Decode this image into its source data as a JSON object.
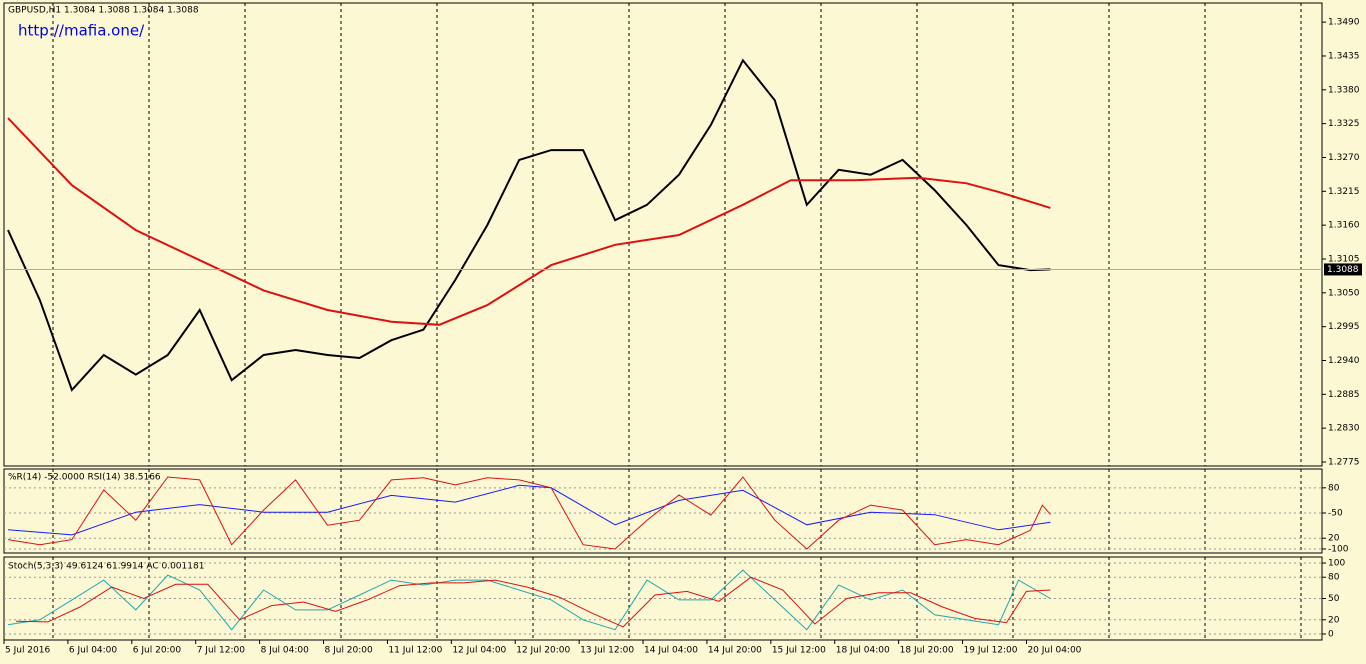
{
  "chart_data": [
    {
      "type": "line",
      "title": "GBPUSD,H1  1.3084 1.3088 1.3084 1.3088",
      "annotation": "http://mafia.one/",
      "xlim": [
        0,
        330
      ],
      "ylim": [
        1.27685,
        1.35211
      ],
      "yticks": [
        {
          "value": 1.349,
          "label": "1.3490"
        },
        1.3435,
        {
          "value": 1.338,
          "label": "1.3380"
        },
        1.3325,
        {
          "value": 1.327,
          "label": "1.3270"
        },
        1.3215,
        {
          "value": 1.316,
          "label": "1.3160"
        },
        1.3105,
        {
          "value": 1.305,
          "label": "1.3050"
        },
        1.2995,
        {
          "value": 1.294,
          "label": "1.2940"
        },
        1.2885,
        {
          "value": 1.283,
          "label": "1.2830"
        },
        1.2775
      ],
      "last": 1.3088,
      "series": [
        {
          "color": "#000000",
          "x": [
            1,
            9,
            17,
            25,
            33,
            41,
            49,
            57,
            65,
            73,
            81,
            89,
            97,
            105,
            113,
            121,
            129,
            137,
            145,
            153,
            161,
            169,
            177,
            185,
            193,
            201,
            209,
            217,
            225,
            233,
            241,
            249,
            257,
            262
          ],
          "values": [
            1.3152,
            1.3038,
            1.2892,
            1.2949,
            1.2917,
            1.2949,
            1.3022,
            1.2908,
            1.2949,
            1.2957,
            1.2949,
            1.2944,
            1.2973,
            1.299,
            1.3071,
            1.316,
            1.3266,
            1.3282,
            1.3282,
            1.3168,
            1.3193,
            1.3242,
            1.3323,
            1.3428,
            1.3363,
            1.3193,
            1.325,
            1.3242,
            1.3266,
            1.3217,
            1.316,
            1.3095,
            1.3087,
            1.3088
          ]
        },
        {
          "color": "#dd1111",
          "x": [
            1,
            17,
            33,
            49,
            65,
            81,
            97,
            109,
            121,
            137,
            153,
            169,
            185,
            197,
            213,
            229,
            241,
            249,
            262
          ],
          "values": [
            1.3334,
            1.3225,
            1.3152,
            1.3103,
            1.3054,
            1.3022,
            1.3003,
            1.2998,
            1.303,
            1.3095,
            1.3128,
            1.3144,
            1.3193,
            1.3233,
            1.3233,
            1.3237,
            1.3228,
            1.3214,
            1.3188
          ]
        }
      ]
    },
    {
      "type": "line",
      "title": "%R(14) -52.0000  RSI(14) 38.5166",
      "xlim": [
        0,
        330
      ],
      "ylim": [
        2.4,
        102.4
      ],
      "y2lim": [
        -105.6,
        11.1
      ],
      "yticks": [
        80,
        20
      ],
      "y2ticks": [
        -50,
        -100
      ],
      "series": [
        {
          "color": "#1a1aff",
          "x": [
            1,
            17,
            33,
            49,
            65,
            81,
            97,
            113,
            129,
            137,
            153,
            169,
            185,
            201,
            217,
            233,
            249,
            262
          ],
          "values": [
            30,
            24,
            51,
            60,
            51,
            51,
            71,
            63,
            83,
            80,
            36,
            65,
            77,
            36,
            51,
            48,
            30,
            39
          ]
        },
        {
          "color": "#dd1111",
          "axis": "y2",
          "x": [
            1,
            9,
            17,
            25,
            33,
            41,
            49,
            57,
            65,
            73,
            81,
            89,
            97,
            105,
            113,
            121,
            129,
            137,
            145,
            153,
            161,
            169,
            177,
            185,
            193,
            201,
            209,
            217,
            225,
            233,
            241,
            249,
            257,
            260,
            262
          ],
          "values": [
            -87,
            -94,
            -87,
            -18,
            -60,
            0,
            -4,
            -94,
            -46,
            -4,
            -67,
            -60,
            -4,
            -1,
            -11,
            -1,
            -4,
            -15,
            -94,
            -100,
            -60,
            -25,
            -53,
            0,
            -60,
            -100,
            -60,
            -39,
            -46,
            -94,
            -87,
            -94,
            -74,
            -39,
            -52
          ]
        }
      ]
    },
    {
      "type": "line",
      "title": "Stoch(5,3,3) 49.6124 61.9914  AC 0.001181",
      "xlim": [
        0,
        330
      ],
      "ylim": [
        -8.5,
        108.5
      ],
      "yticks": [
        100,
        80,
        50,
        20,
        0
      ],
      "xticks": [
        {
          "value": 0,
          "label": "5 Jul 2016"
        },
        {
          "value": 16,
          "label": "6 Jul 04:00"
        },
        {
          "value": 32,
          "label": "6 Jul 20:00"
        },
        {
          "value": 48,
          "label": "7 Jul 12:00"
        },
        {
          "value": 64,
          "label": "8 Jul 04:00"
        },
        {
          "value": 80,
          "label": "8 Jul 20:00"
        },
        {
          "value": 96,
          "label": "11 Jul 12:00"
        },
        {
          "value": 112,
          "label": "12 Jul 04:00"
        },
        {
          "value": 128,
          "label": "12 Jul 20:00"
        },
        {
          "value": 144,
          "label": "13 Jul 12:00"
        },
        {
          "value": 160,
          "label": "14 Jul 04:00"
        },
        {
          "value": 176,
          "label": "14 Jul 20:00"
        },
        {
          "value": 192,
          "label": "15 Jul 12:00"
        },
        {
          "value": 208,
          "label": "18 Jul 04:00"
        },
        {
          "value": 224,
          "label": "18 Jul 20:00"
        },
        {
          "value": 240,
          "label": "19 Jul 12:00"
        },
        {
          "value": 256,
          "label": "20 Jul 04:00"
        }
      ],
      "series": [
        {
          "color": "#20a8b0",
          "x": [
            1,
            9,
            17,
            25,
            33,
            41,
            49,
            57,
            65,
            73,
            81,
            89,
            97,
            105,
            113,
            121,
            129,
            137,
            145,
            153,
            161,
            169,
            177,
            185,
            193,
            201,
            209,
            217,
            225,
            233,
            241,
            249,
            254,
            262
          ],
          "values": [
            13,
            20,
            48,
            76,
            34,
            83,
            62,
            6,
            62,
            34,
            34,
            55,
            76,
            69,
            76,
            76,
            62,
            48,
            20,
            6,
            76,
            48,
            48,
            90,
            48,
            6,
            69,
            48,
            62,
            27,
            20,
            13,
            76,
            50
          ]
        },
        {
          "color": "#dd1111",
          "x": [
            3,
            11,
            19,
            27,
            35,
            43,
            51,
            59,
            67,
            75,
            83,
            91,
            99,
            107,
            115,
            123,
            131,
            139,
            147,
            155,
            163,
            171,
            179,
            187,
            195,
            203,
            211,
            219,
            227,
            235,
            243,
            251,
            256,
            262
          ],
          "values": [
            18,
            17,
            38,
            66,
            50,
            70,
            70,
            20,
            40,
            45,
            32,
            48,
            68,
            72,
            72,
            76,
            66,
            52,
            30,
            10,
            55,
            60,
            46,
            80,
            62,
            14,
            50,
            58,
            58,
            38,
            22,
            16,
            60,
            62
          ]
        }
      ]
    }
  ]
}
